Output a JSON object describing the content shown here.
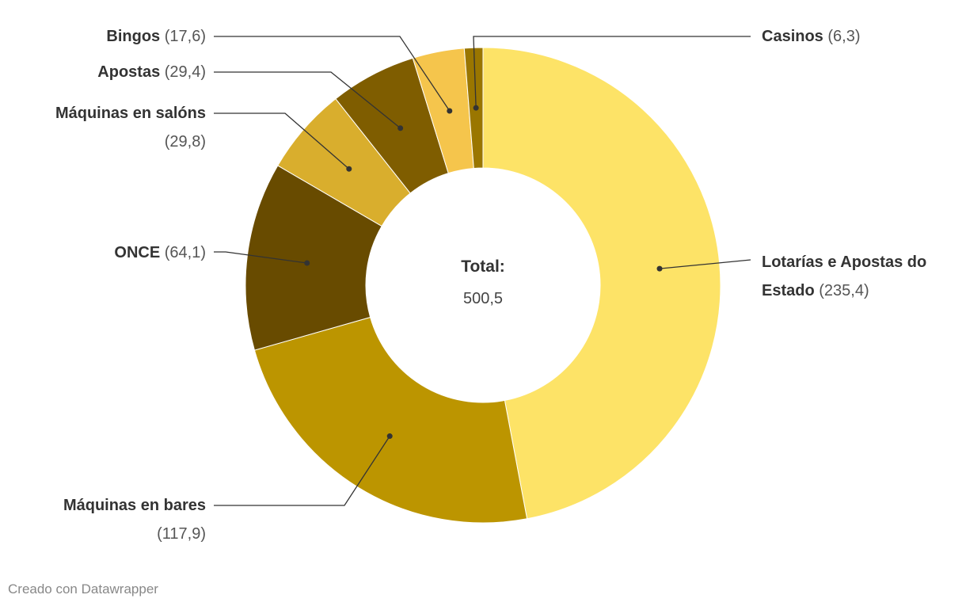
{
  "chart_data": {
    "type": "donut",
    "categories": [
      "Lotarías e Apostas do Estado",
      "Máquinas en bares",
      "ONCE",
      "Máquinas en salóns",
      "Apostas",
      "Bingos",
      "Casinos"
    ],
    "values": [
      235.4,
      117.9,
      64.1,
      29.8,
      29.4,
      17.6,
      6.3
    ],
    "value_labels": [
      "(235,4)",
      "(117,9)",
      "(64,1)",
      "(29,8)",
      "(29,4)",
      "(17,6)",
      "(6,3)"
    ],
    "colors": [
      "#fde367",
      "#bc9500",
      "#684b00",
      "#d9ae2d",
      "#7f5d00",
      "#f5c54c",
      "#9a7600"
    ],
    "center_label": "Total:",
    "total": {
      "value": 500.5,
      "label": "500,5"
    },
    "footer": "Creado con Datawrapper"
  }
}
